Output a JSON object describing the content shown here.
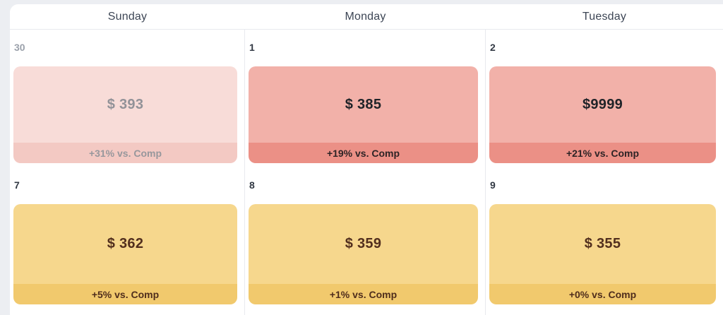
{
  "calendar": {
    "day_headers": [
      "Sunday",
      "Monday",
      "Tuesday"
    ],
    "cells": [
      {
        "day": "30",
        "price": "$ 393",
        "comp": "+31% vs. Comp",
        "variant": "red-muted"
      },
      {
        "day": "1",
        "price": "$ 385",
        "comp": "+19% vs. Comp",
        "variant": "red"
      },
      {
        "day": "2",
        "price": "$9999",
        "comp": "+21% vs. Comp",
        "variant": "red"
      },
      {
        "day": "7",
        "price": "$ 362",
        "comp": "+5% vs. Comp",
        "variant": "yellow"
      },
      {
        "day": "8",
        "price": "$ 359",
        "comp": "+1% vs. Comp",
        "variant": "yellow"
      },
      {
        "day": "9",
        "price": "$ 355",
        "comp": "+0% vs. Comp",
        "variant": "yellow"
      }
    ],
    "colors": {
      "page_background": "#eceef2",
      "panel_background": "#ffffff",
      "grid_border": "#e8eaee",
      "header_text": "#3d4655",
      "day_number": "#313843",
      "day_number_muted": "#9ba1ab",
      "red_card_body": "#f2b1a9",
      "red_card_footer": "#eb9086",
      "red_muted_card_body": "#f8dcd8",
      "red_muted_card_footer": "#f3c9c3",
      "red_muted_text": "#97979c",
      "yellow_card_body": "#f6d78d",
      "yellow_card_footer": "#f1c96d",
      "yellow_card_text": "#522f1e"
    }
  }
}
